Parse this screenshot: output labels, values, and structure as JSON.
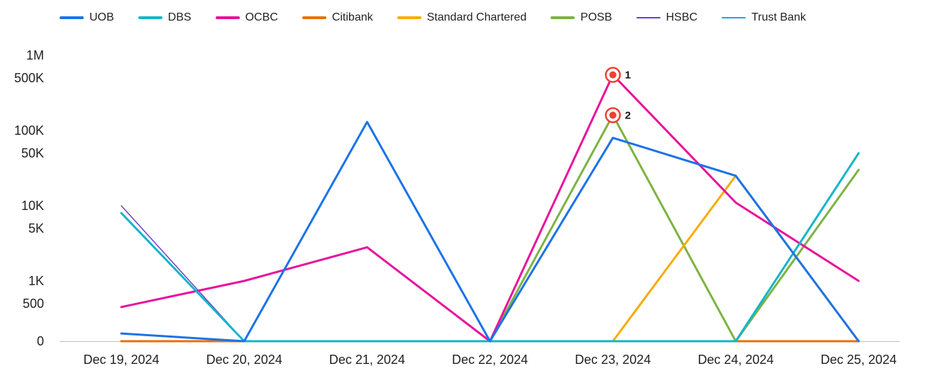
{
  "chart_data": {
    "type": "line",
    "title": "",
    "xlabel": "",
    "ylabel": "",
    "y_scale": "log",
    "ylim": [
      0,
      1000000
    ],
    "legend_position": "top",
    "grid": false,
    "x": [
      "Dec 19, 2024",
      "Dec 20, 2024",
      "Dec 21, 2024",
      "Dec 22, 2024",
      "Dec 23, 2024",
      "Dec 24, 2024",
      "Dec 25, 2024"
    ],
    "y_ticks": [
      {
        "value": 0,
        "label": "0"
      },
      {
        "value": 500,
        "label": "500"
      },
      {
        "value": 1000,
        "label": "1K"
      },
      {
        "value": 5000,
        "label": "5K"
      },
      {
        "value": 10000,
        "label": "10K"
      },
      {
        "value": 50000,
        "label": "50K"
      },
      {
        "value": 100000,
        "label": "100K"
      },
      {
        "value": 500000,
        "label": "500K"
      },
      {
        "value": 1000000,
        "label": "1M"
      }
    ],
    "series": [
      {
        "name": "UOB",
        "color": "#1a73e8",
        "values": [
          200,
          0,
          130000,
          0,
          80000,
          25000,
          0
        ]
      },
      {
        "name": "DBS",
        "color": "#12b5cb",
        "values": [
          8000,
          0,
          0,
          0,
          0,
          0,
          50000
        ]
      },
      {
        "name": "OCBC",
        "color": "#e8119c",
        "values": [
          450,
          1000,
          2800,
          0,
          550000,
          11000,
          1000
        ]
      },
      {
        "name": "Citibank",
        "color": "#e8710a",
        "values": [
          0,
          0,
          0,
          0,
          0,
          0,
          0
        ]
      },
      {
        "name": "Standard Chartered",
        "color": "#f9ab00",
        "values": [
          0,
          0,
          0,
          0,
          0,
          25000,
          0
        ]
      },
      {
        "name": "POSB",
        "color": "#7cb342",
        "values": [
          0,
          0,
          0,
          0,
          160000,
          0,
          30000
        ]
      },
      {
        "name": "HSBC",
        "color": "#6f42c1",
        "values": [
          10000,
          0,
          0,
          0,
          0,
          0,
          0
        ]
      },
      {
        "name": "Trust Bank",
        "color": "#1ea7e1",
        "values": [
          0,
          0,
          0,
          0,
          0,
          0,
          0
        ]
      }
    ],
    "annotations": [
      {
        "label": "1",
        "series": "OCBC",
        "x": "Dec 23, 2024",
        "value": 550000
      },
      {
        "label": "2",
        "series": "POSB",
        "x": "Dec 23, 2024",
        "value": 160000
      }
    ],
    "annotation_color": "#ea4335"
  }
}
